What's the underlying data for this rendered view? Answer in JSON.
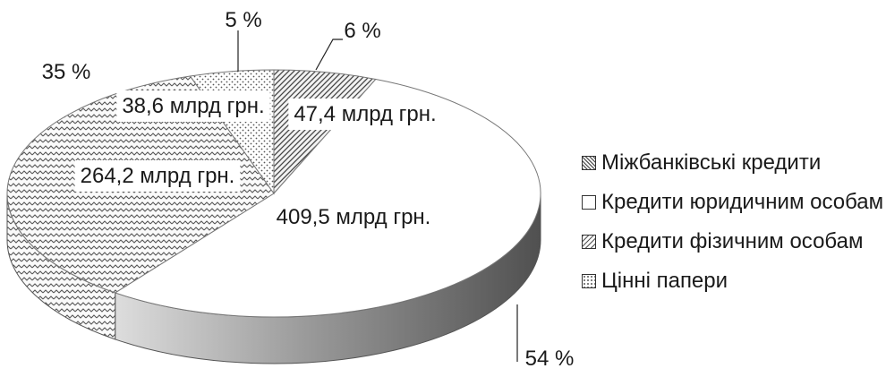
{
  "chart_data": {
    "type": "pie",
    "title": "",
    "slices": [
      {
        "name": "Міжбанківські кредити",
        "value": 47.4,
        "value_label": "47,4 млрд грн.",
        "percent_label": "6 %",
        "pattern": "diag-dense"
      },
      {
        "name": "Кредити юридичним особам",
        "value": 409.5,
        "value_label": "409,5 млрд грн.",
        "percent_label": "54 %",
        "pattern": "plain"
      },
      {
        "name": "Кредити фізичним особам",
        "value": 264.2,
        "value_label": "264,2 млрд грн.",
        "percent_label": "35 %",
        "pattern": "zigzag"
      },
      {
        "name": "Цінні папери",
        "value": 38.6,
        "value_label": "38,6 млрд грн.",
        "percent_label": "5 %",
        "pattern": "dots"
      }
    ],
    "legend_position": "right",
    "three_d": true
  }
}
